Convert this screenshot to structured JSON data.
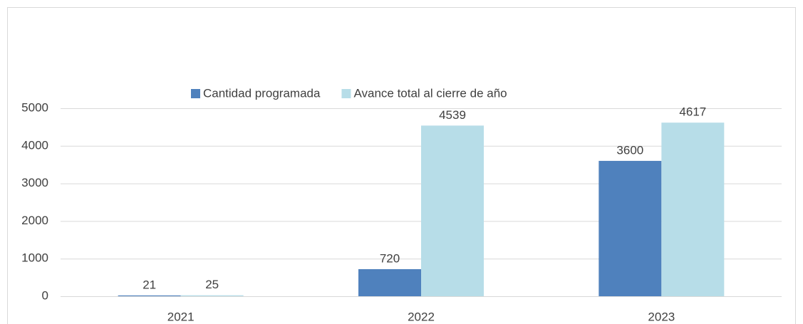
{
  "chart_data": {
    "type": "bar",
    "categories": [
      "2021",
      "2022",
      "2023"
    ],
    "series": [
      {
        "name": "Cantidad programada",
        "color": "#4f81bd",
        "values": [
          21,
          720,
          3600
        ]
      },
      {
        "name": "Avance total al cierre de año",
        "color": "#b7dde8",
        "values": [
          25,
          4539,
          4617
        ]
      }
    ],
    "ylim": [
      0,
      5000
    ],
    "yticks": [
      0,
      1000,
      2000,
      3000,
      4000,
      5000
    ],
    "grid": true,
    "legend": "top"
  }
}
